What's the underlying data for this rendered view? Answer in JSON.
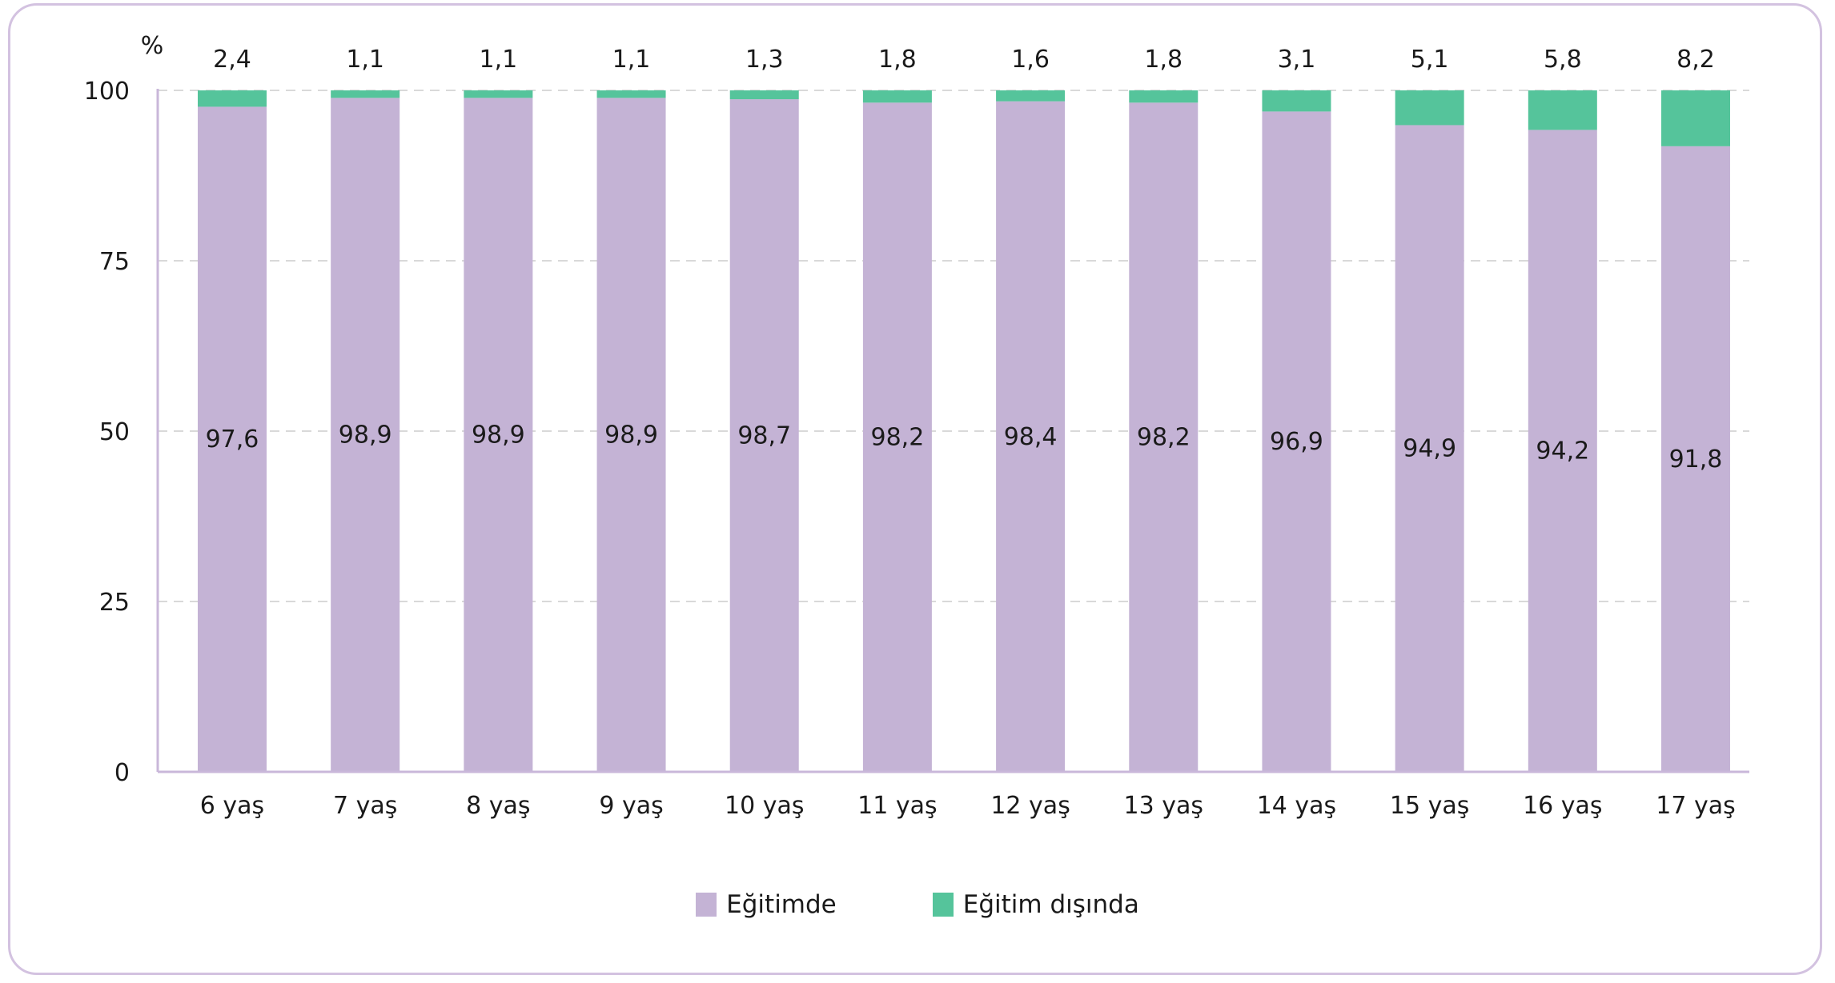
{
  "chart_data": {
    "type": "bar",
    "stacked": true,
    "unit_label": "%",
    "categories": [
      "6 yaş",
      "7 yaş",
      "8 yaş",
      "9 yaş",
      "10 yaş",
      "11 yaş",
      "12 yaş",
      "13 yaş",
      "14 yaş",
      "15 yaş",
      "16 yaş",
      "17 yaş"
    ],
    "series": [
      {
        "name": "Eğitimde",
        "color": "#c4b3d5",
        "values": [
          97.6,
          98.9,
          98.9,
          98.9,
          98.7,
          98.2,
          98.4,
          98.2,
          96.9,
          94.9,
          94.2,
          91.8
        ],
        "labels": [
          "97,6",
          "98,9",
          "98,9",
          "98,9",
          "98,7",
          "98,2",
          "98,4",
          "98,2",
          "96,9",
          "94,9",
          "94,2",
          "91,8"
        ]
      },
      {
        "name": "Eğitim dışında",
        "color": "#55c49b",
        "values": [
          2.4,
          1.1,
          1.1,
          1.1,
          1.3,
          1.8,
          1.6,
          1.8,
          3.1,
          5.1,
          5.8,
          8.2
        ],
        "labels": [
          "2,4",
          "1,1",
          "1,1",
          "1,1",
          "1,3",
          "1,8",
          "1,6",
          "1,8",
          "3,1",
          "5,1",
          "5,8",
          "8,2"
        ]
      }
    ],
    "ylim": [
      0,
      100
    ],
    "yticks": [
      "0",
      "25",
      "50",
      "75",
      "100"
    ],
    "grid": true,
    "legend_position": "bottom-center",
    "axis_color": "#c9b7da",
    "grid_color": "#d9d9d9"
  },
  "legend": {
    "item1": "Eğitimde",
    "item2": "Eğitim dışında"
  }
}
